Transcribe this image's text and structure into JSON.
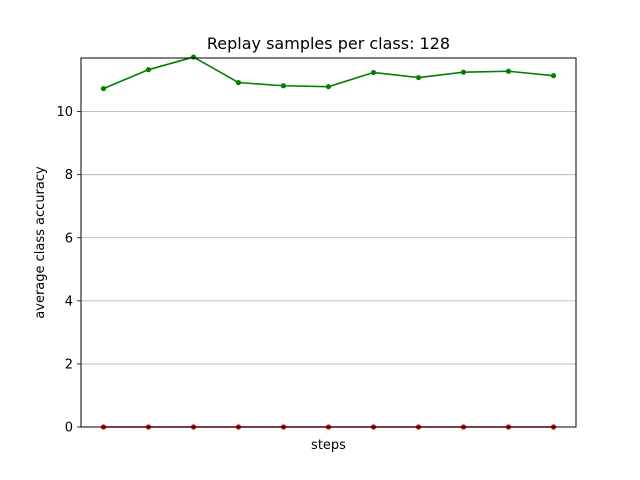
{
  "chart_data": {
    "type": "line",
    "title": "Replay samples per class: 128",
    "xlabel": "steps",
    "ylabel": "average class accuracy",
    "ylim": [
      0,
      11.7
    ],
    "yticks": [
      0,
      2,
      4,
      6,
      8,
      10
    ],
    "grid": "y",
    "x": [
      0,
      1,
      2,
      3,
      4,
      5,
      6,
      7,
      8,
      9,
      10
    ],
    "series": [
      {
        "color": "#008000",
        "values": [
          10.73,
          11.33,
          11.73,
          10.92,
          10.82,
          10.79,
          11.24,
          11.08,
          11.25,
          11.28,
          11.14
        ]
      },
      {
        "color": "#cc0000",
        "values": [
          0,
          0,
          0,
          0,
          0,
          0,
          0,
          0,
          0,
          0,
          0
        ]
      }
    ]
  }
}
